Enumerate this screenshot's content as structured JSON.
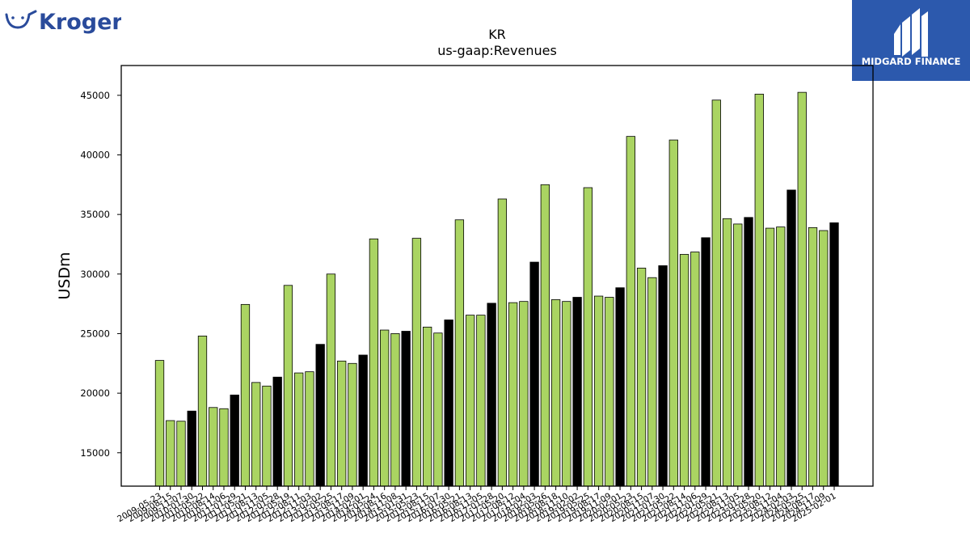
{
  "brand_left": {
    "name": "Kroger",
    "color": "#2a4b9b"
  },
  "brand_right": {
    "name": "MIDGARD FINANCE",
    "bg": "#2c59ad"
  },
  "chart_data": {
    "type": "bar",
    "title": "KR",
    "subtitle": "us-gaap:Revenues",
    "ylabel": "USDm",
    "xlabel": "",
    "ylim": [
      12200,
      47500
    ],
    "yticks": [
      15000,
      20000,
      25000,
      30000,
      35000,
      40000,
      45000
    ],
    "colors": {
      "quarter": "#aad462",
      "annual": "#000000"
    },
    "grid": false,
    "categories": [
      "2009-05-23",
      "2009-08-15",
      "2009-11-07",
      "2010-01-30",
      "2010-05-22",
      "2010-08-14",
      "2010-11-06",
      "2011-01-29",
      "2011-05-21",
      "2011-08-13",
      "2011-11-05",
      "2012-01-28",
      "2012-05-19",
      "2012-08-11",
      "2012-11-03",
      "2013-02-02",
      "2013-05-25",
      "2013-08-17",
      "2013-11-09",
      "2014-02-01",
      "2014-05-24",
      "2014-08-16",
      "2014-11-08",
      "2015-01-31",
      "2015-05-23",
      "2015-08-15",
      "2015-11-07",
      "2016-01-30",
      "2016-05-21",
      "2016-08-13",
      "2016-11-05",
      "2017-01-28",
      "2017-05-20",
      "2017-08-12",
      "2017-11-04",
      "2018-02-03",
      "2018-05-26",
      "2018-08-18",
      "2018-11-10",
      "2019-02-02",
      "2019-05-25",
      "2019-08-17",
      "2019-11-09",
      "2020-02-01",
      "2020-05-23",
      "2020-08-15",
      "2020-11-07",
      "2021-01-30",
      "2021-05-22",
      "2021-08-14",
      "2021-11-06",
      "2022-01-29",
      "2022-05-21",
      "2022-08-13",
      "2022-11-05",
      "2023-01-28",
      "2023-05-20",
      "2023-08-12",
      "2023-11-04",
      "2024-02-03",
      "2024-05-25",
      "2024-08-17",
      "2024-11-09",
      "2025-02-01"
    ],
    "values": [
      22750,
      17700,
      17650,
      18500,
      24800,
      18800,
      18700,
      19850,
      27450,
      20900,
      20600,
      21350,
      29050,
      21700,
      21800,
      24100,
      30000,
      22700,
      22500,
      23200,
      32950,
      25300,
      25000,
      25200,
      33000,
      25550,
      25050,
      26150,
      34550,
      26550,
      26550,
      27550,
      36300,
      27600,
      27700,
      31000,
      37500,
      27850,
      27700,
      28050,
      37250,
      28150,
      28050,
      28850,
      41550,
      30500,
      29700,
      30700,
      41250,
      31650,
      31850,
      33050,
      44600,
      34650,
      34200,
      34750,
      45100,
      33850,
      33950,
      37050,
      45250,
      33900,
      33650,
      34300
    ],
    "annual_flags": [
      0,
      0,
      0,
      1,
      0,
      0,
      0,
      1,
      0,
      0,
      0,
      1,
      0,
      0,
      0,
      1,
      0,
      0,
      0,
      1,
      0,
      0,
      0,
      1,
      0,
      0,
      0,
      1,
      0,
      0,
      0,
      1,
      0,
      0,
      0,
      1,
      0,
      0,
      0,
      1,
      0,
      0,
      0,
      1,
      0,
      0,
      0,
      1,
      0,
      0,
      0,
      1,
      0,
      0,
      0,
      1,
      0,
      0,
      0,
      1,
      0,
      0,
      0,
      1
    ]
  }
}
